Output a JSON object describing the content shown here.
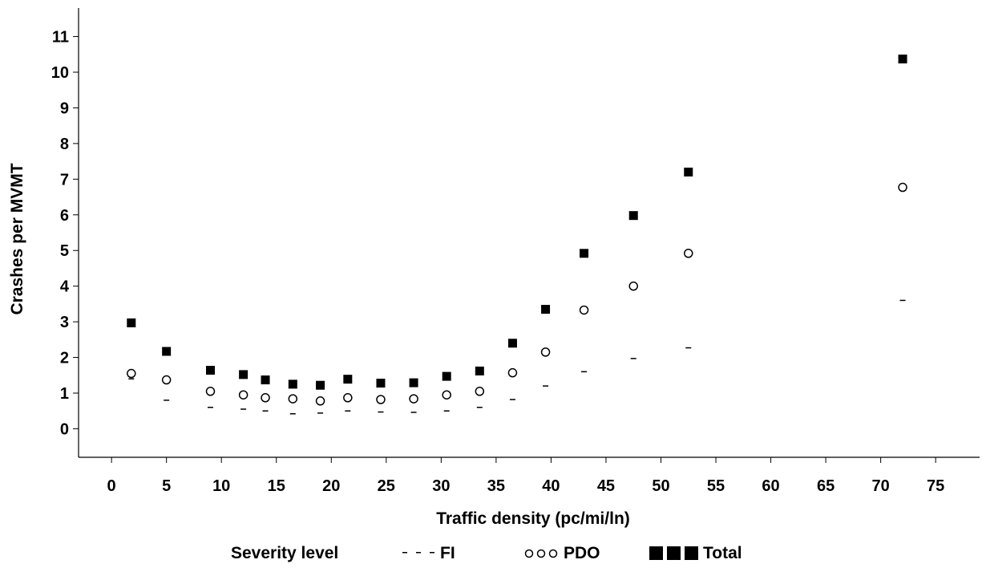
{
  "chart_data": {
    "type": "scatter",
    "xlabel": "Traffic density (pc/mi/ln)",
    "ylabel": "Crashes per MVMT",
    "xlim": [
      -3,
      79
    ],
    "ylim": [
      -0.8,
      11.8
    ],
    "xticks": [
      0,
      5,
      10,
      15,
      20,
      25,
      30,
      35,
      40,
      45,
      50,
      55,
      60,
      65,
      70,
      75
    ],
    "yticks": [
      0,
      1,
      2,
      3,
      4,
      5,
      6,
      7,
      8,
      9,
      10,
      11
    ],
    "legend": {
      "title": "Severity level",
      "position": "bottom"
    },
    "series": [
      {
        "name": "FI",
        "marker": "dash",
        "x": [
          1.8,
          5.0,
          9.0,
          12.0,
          14.0,
          16.5,
          19.0,
          21.5,
          24.5,
          27.5,
          30.5,
          33.5,
          36.5,
          39.5,
          43.0,
          47.5,
          52.5,
          72.0
        ],
        "y": [
          1.4,
          0.8,
          0.6,
          0.55,
          0.5,
          0.42,
          0.44,
          0.5,
          0.47,
          0.46,
          0.5,
          0.6,
          0.82,
          1.2,
          1.6,
          1.97,
          2.27,
          3.6
        ]
      },
      {
        "name": "PDO",
        "marker": "circle",
        "x": [
          1.8,
          5.0,
          9.0,
          12.0,
          14.0,
          16.5,
          19.0,
          21.5,
          24.5,
          27.5,
          30.5,
          33.5,
          36.5,
          39.5,
          43.0,
          47.5,
          52.5,
          72.0
        ],
        "y": [
          1.55,
          1.37,
          1.05,
          0.95,
          0.87,
          0.84,
          0.78,
          0.87,
          0.82,
          0.84,
          0.95,
          1.05,
          1.57,
          2.15,
          3.33,
          4.0,
          4.92,
          6.77
        ]
      },
      {
        "name": "Total",
        "marker": "square",
        "x": [
          1.8,
          5.0,
          9.0,
          12.0,
          14.0,
          16.5,
          19.0,
          21.5,
          24.5,
          27.5,
          30.5,
          33.5,
          36.5,
          39.5,
          43.0,
          47.5,
          52.5,
          72.0
        ],
        "y": [
          2.97,
          2.17,
          1.64,
          1.52,
          1.37,
          1.25,
          1.22,
          1.39,
          1.28,
          1.29,
          1.47,
          1.62,
          2.4,
          3.35,
          4.92,
          5.98,
          7.2,
          10.37
        ]
      }
    ]
  }
}
